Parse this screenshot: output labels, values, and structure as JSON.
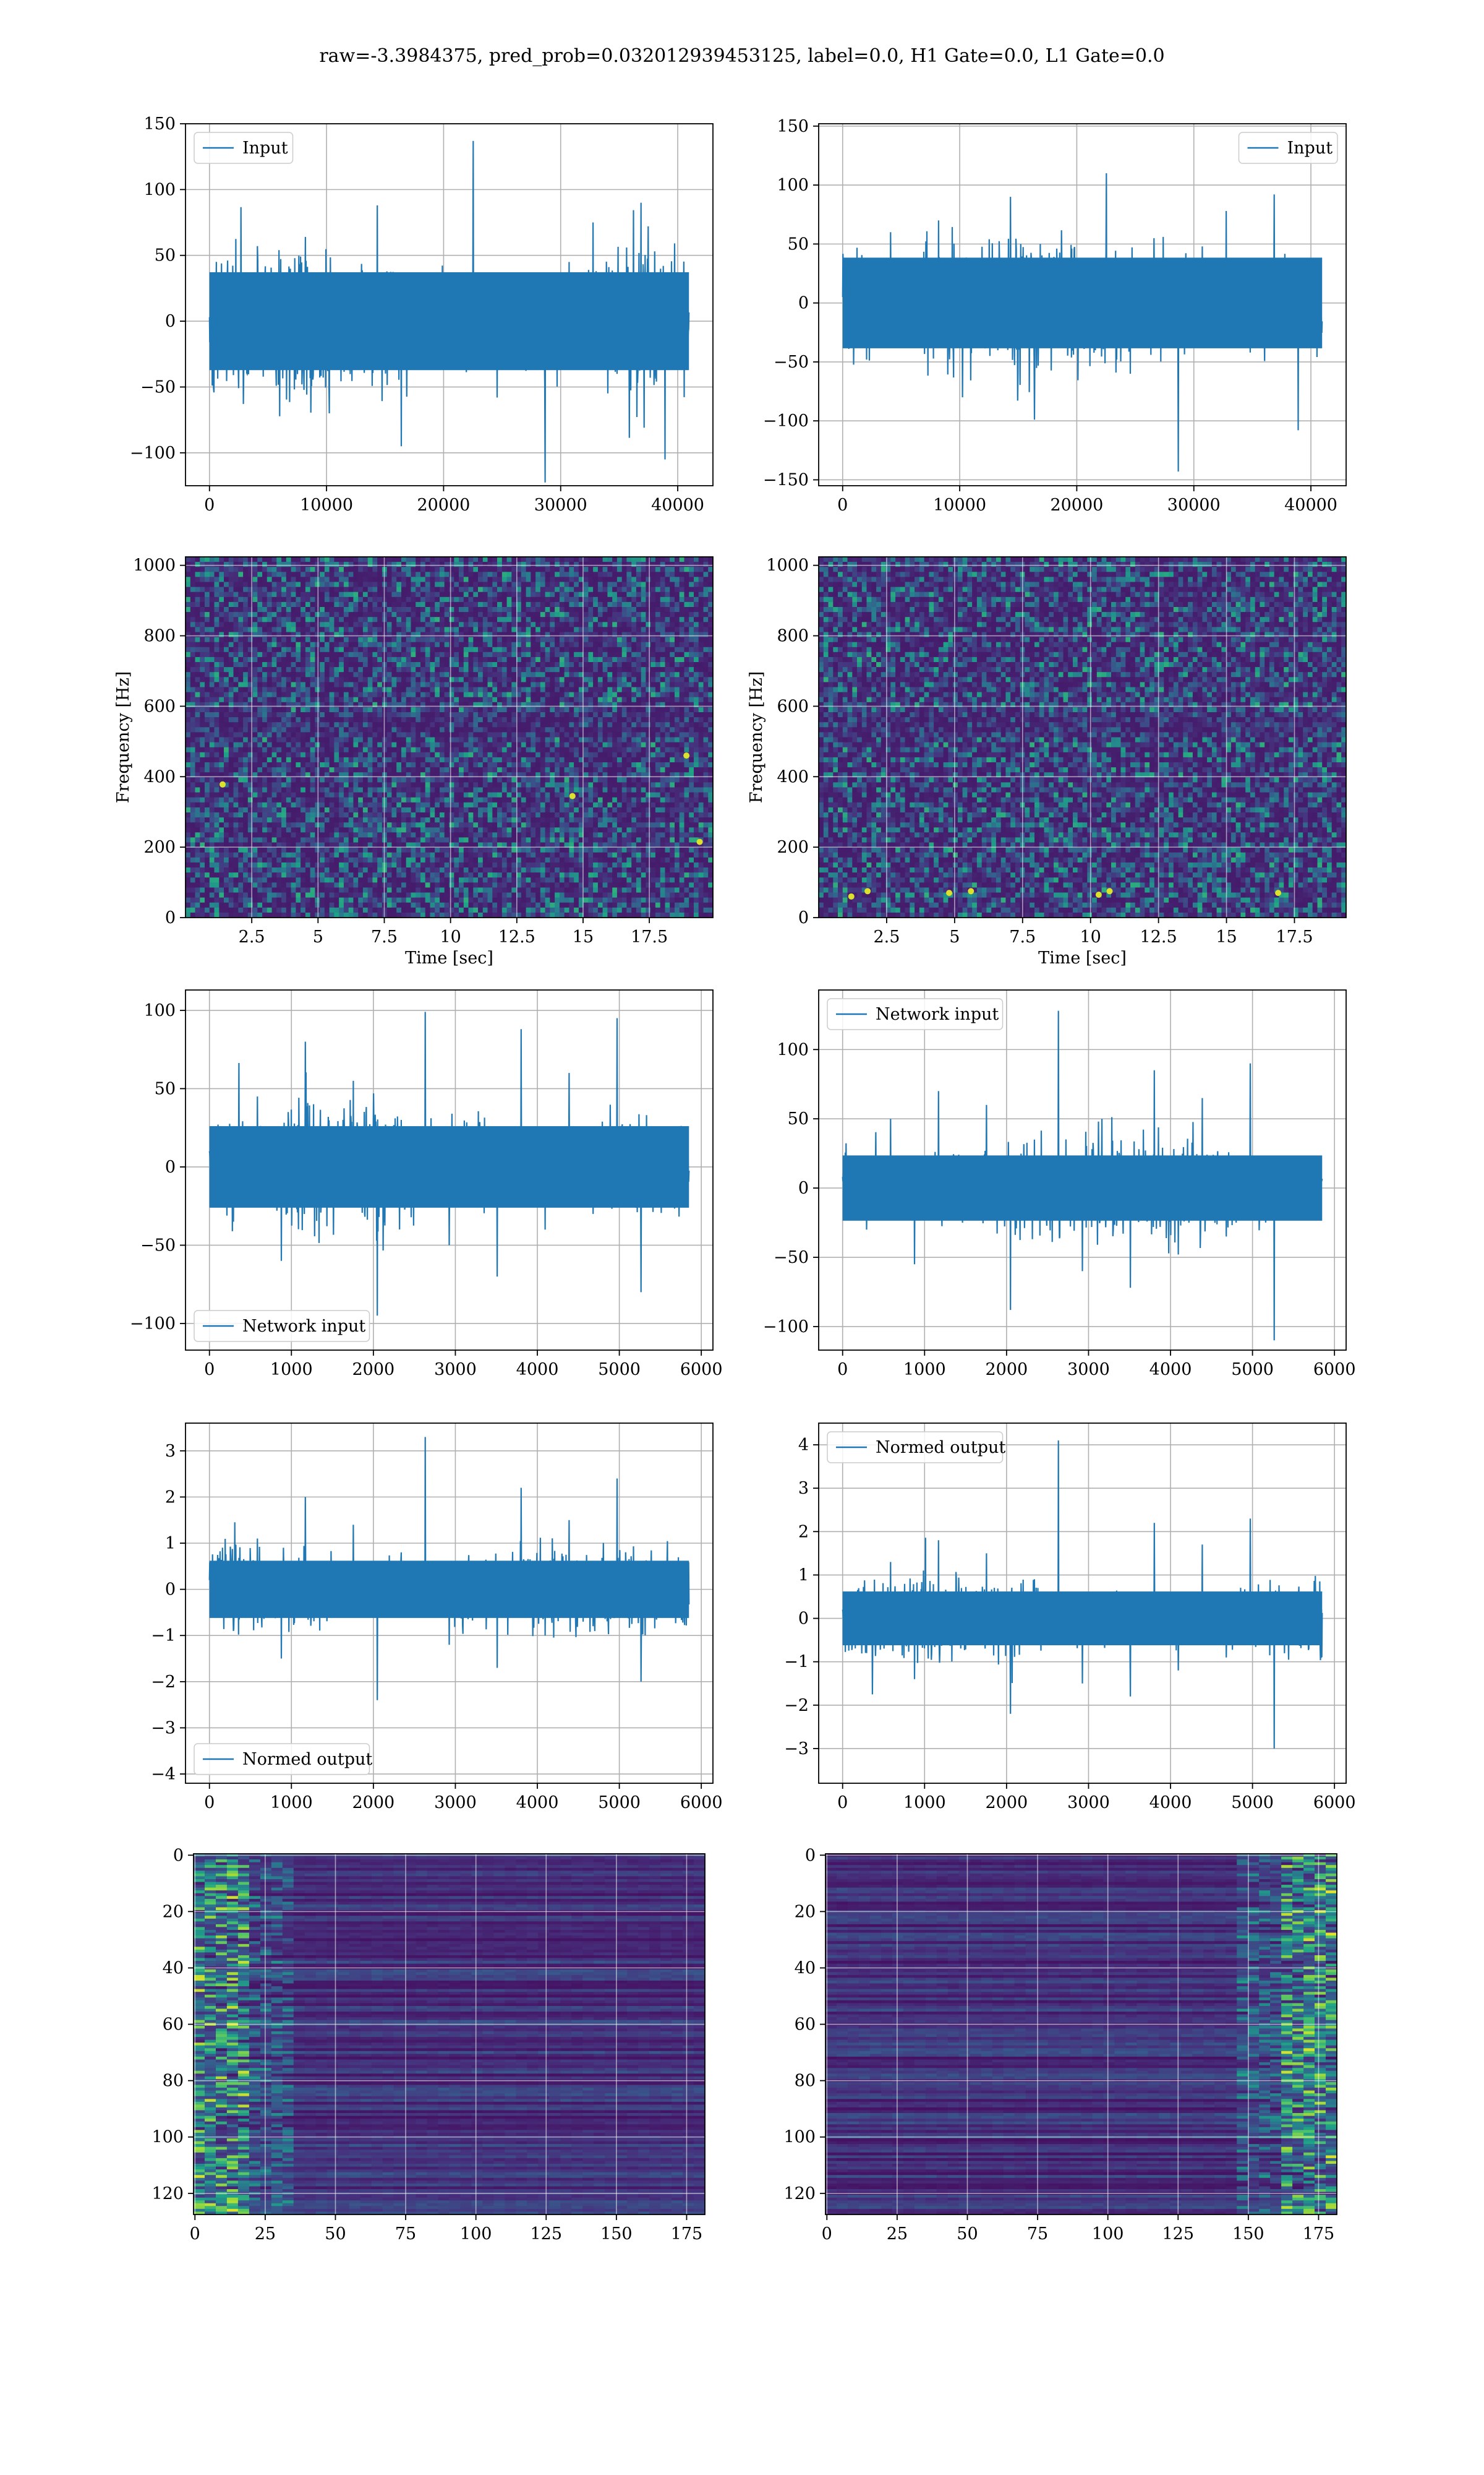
{
  "figure": {
    "suptitle": "raw=-3.3984375, pred_prob=0.032012939453125, label=0.0, H1 Gate=0.0, L1 Gate=0.0"
  },
  "colors": {
    "series": "#1f77b4",
    "grid": "#b0b0b0",
    "viridis": [
      "#440154",
      "#46327e",
      "#365c8d",
      "#277f8e",
      "#1fa187",
      "#4ac16d",
      "#a0da39",
      "#fde725"
    ]
  },
  "chart_data": [
    {
      "id": "h1-input",
      "type": "line",
      "series": [
        {
          "name": "Input",
          "x_range": [
            0,
            40960
          ],
          "amplitude_typical": 60,
          "values_sample": [
            3,
            -41,
            57,
            -22,
            64,
            -70,
            12,
            88,
            -95,
            30,
            -12,
            137,
            -58,
            20,
            -128,
            45,
            75,
            -40,
            90,
            -105
          ]
        }
      ],
      "xlim": [
        -2048,
        43008
      ],
      "ylim": [
        -125,
        150
      ],
      "xticks": [
        0,
        10000,
        20000,
        30000,
        40000
      ],
      "yticks": [
        -100,
        -50,
        0,
        50,
        100,
        150
      ],
      "legend": "upper left",
      "grid": true
    },
    {
      "id": "l1-input",
      "type": "line",
      "series": [
        {
          "name": "Input",
          "x_range": [
            0,
            40960
          ],
          "amplitude_typical": 62,
          "values_sample": [
            5,
            -48,
            60,
            -25,
            70,
            -80,
            15,
            90,
            -99,
            33,
            -15,
            110,
            -60,
            24,
            -143,
            48,
            78,
            -42,
            92,
            -108
          ]
        }
      ],
      "xlim": [
        -2048,
        43008
      ],
      "ylim": [
        -155,
        152
      ],
      "xticks": [
        0,
        10000,
        20000,
        30000,
        40000
      ],
      "yticks": [
        -150,
        -100,
        -50,
        0,
        50,
        100,
        150
      ],
      "legend": "upper right",
      "grid": true
    },
    {
      "id": "h1-spectrogram",
      "type": "heatmap",
      "xlim": [
        0,
        19.9
      ],
      "ylim": [
        0,
        1024
      ],
      "xticks": [
        2.5,
        5.0,
        7.5,
        10.0,
        12.5,
        15.0,
        17.5
      ],
      "yticks": [
        0,
        200,
        400,
        600,
        800,
        1000
      ],
      "xlabel": "Time [sec]",
      "ylabel": "Frequency [Hz]",
      "colormap": "viridis",
      "grid": true,
      "hot_spots": [
        {
          "t": 14.6,
          "f": 345
        },
        {
          "t": 18.9,
          "f": 460
        },
        {
          "t": 1.4,
          "f": 378
        },
        {
          "t": 19.4,
          "f": 215
        }
      ]
    },
    {
      "id": "l1-spectrogram",
      "type": "heatmap",
      "xlim": [
        0,
        19.4
      ],
      "ylim": [
        0,
        1024
      ],
      "xticks": [
        2.5,
        5.0,
        7.5,
        10.0,
        12.5,
        15.0,
        17.5
      ],
      "yticks": [
        0,
        200,
        400,
        600,
        800,
        1000
      ],
      "xlabel": "Time [sec]",
      "ylabel": "Frequency [Hz]",
      "colormap": "viridis",
      "grid": true,
      "hot_spots": [
        {
          "t": 1.2,
          "f": 60
        },
        {
          "t": 4.8,
          "f": 70
        },
        {
          "t": 5.6,
          "f": 75
        },
        {
          "t": 10.3,
          "f": 65
        },
        {
          "t": 10.7,
          "f": 75
        },
        {
          "t": 16.9,
          "f": 70
        },
        {
          "t": 1.8,
          "f": 75
        }
      ]
    },
    {
      "id": "h1-network-input",
      "type": "line",
      "series": [
        {
          "name": "Network input",
          "x_range": [
            0,
            5850
          ],
          "amplitude_typical": 42,
          "values_sample": [
            10,
            -35,
            45,
            -60,
            80,
            -20,
            55,
            -95,
            30,
            99,
            -50,
            20,
            -70,
            88,
            -40,
            60,
            -30,
            95,
            -80,
            15
          ]
        }
      ],
      "xlim": [
        -292,
        6142
      ],
      "ylim": [
        -117,
        113
      ],
      "xticks": [
        0,
        1000,
        2000,
        3000,
        4000,
        5000,
        6000
      ],
      "yticks": [
        -100,
        -50,
        0,
        50,
        100
      ],
      "legend": "lower left",
      "grid": true
    },
    {
      "id": "l1-network-input",
      "type": "line",
      "series": [
        {
          "name": "Network input",
          "x_range": [
            0,
            5850
          ],
          "amplitude_typical": 38,
          "values_sample": [
            8,
            -30,
            50,
            -55,
            70,
            -25,
            60,
            -88,
            35,
            128,
            -60,
            18,
            -72,
            85,
            -48,
            65,
            -35,
            90,
            -110,
            20
          ]
        }
      ],
      "xlim": [
        -292,
        6142
      ],
      "ylim": [
        -117,
        143
      ],
      "xticks": [
        0,
        1000,
        2000,
        3000,
        4000,
        5000,
        6000
      ],
      "yticks": [
        -100,
        -50,
        0,
        50,
        100
      ],
      "legend": "upper left",
      "grid": true
    },
    {
      "id": "h1-normed-output",
      "type": "line",
      "series": [
        {
          "name": "Normed output",
          "x_range": [
            0,
            5850
          ],
          "amplitude_typical": 1.0,
          "values_sample": [
            0.2,
            -0.9,
            1.1,
            -1.5,
            2.0,
            -0.5,
            1.4,
            -2.4,
            0.8,
            3.3,
            -1.2,
            0.5,
            -1.7,
            2.2,
            -1.0,
            1.5,
            -0.8,
            2.4,
            -2.0,
            0.4
          ]
        }
      ],
      "xlim": [
        -292,
        6142
      ],
      "ylim": [
        -4.2,
        3.6
      ],
      "xticks": [
        0,
        1000,
        2000,
        3000,
        4000,
        5000,
        6000
      ],
      "yticks": [
        -4,
        -3,
        -2,
        -1,
        0,
        1,
        2,
        3
      ],
      "legend": "lower left",
      "grid": true
    },
    {
      "id": "l1-normed-output",
      "type": "line",
      "series": [
        {
          "name": "Normed output",
          "x_range": [
            0,
            5850
          ],
          "amplitude_typical": 1.0,
          "values_sample": [
            0.2,
            -0.8,
            1.3,
            -1.4,
            1.8,
            -0.6,
            1.5,
            -2.2,
            0.9,
            4.1,
            -1.5,
            0.4,
            -1.8,
            2.2,
            -1.2,
            1.7,
            -0.9,
            2.3,
            -3.0,
            0.5
          ]
        }
      ],
      "xlim": [
        -292,
        6142
      ],
      "ylim": [
        -3.8,
        4.5
      ],
      "xticks": [
        0,
        1000,
        2000,
        3000,
        4000,
        5000,
        6000
      ],
      "yticks": [
        -3,
        -2,
        -1,
        0,
        1,
        2,
        3,
        4
      ],
      "legend": "upper left",
      "grid": true
    },
    {
      "id": "h1-feature-map",
      "type": "heatmap",
      "xlim": [
        -0.5,
        181.5
      ],
      "ylim": [
        127.5,
        -0.5
      ],
      "xticks": [
        0,
        25,
        50,
        75,
        100,
        125,
        150,
        175
      ],
      "yticks": [
        0,
        20,
        40,
        60,
        80,
        100,
        120
      ],
      "colormap": "viridis",
      "grid": true,
      "bright_side": "left"
    },
    {
      "id": "l1-feature-map",
      "type": "heatmap",
      "xlim": [
        -0.5,
        181.5
      ],
      "ylim": [
        127.5,
        -0.5
      ],
      "xticks": [
        0,
        25,
        50,
        75,
        100,
        125,
        150,
        175
      ],
      "yticks": [
        0,
        20,
        40,
        60,
        80,
        100,
        120
      ],
      "colormap": "viridis",
      "grid": true,
      "bright_side": "right"
    }
  ]
}
